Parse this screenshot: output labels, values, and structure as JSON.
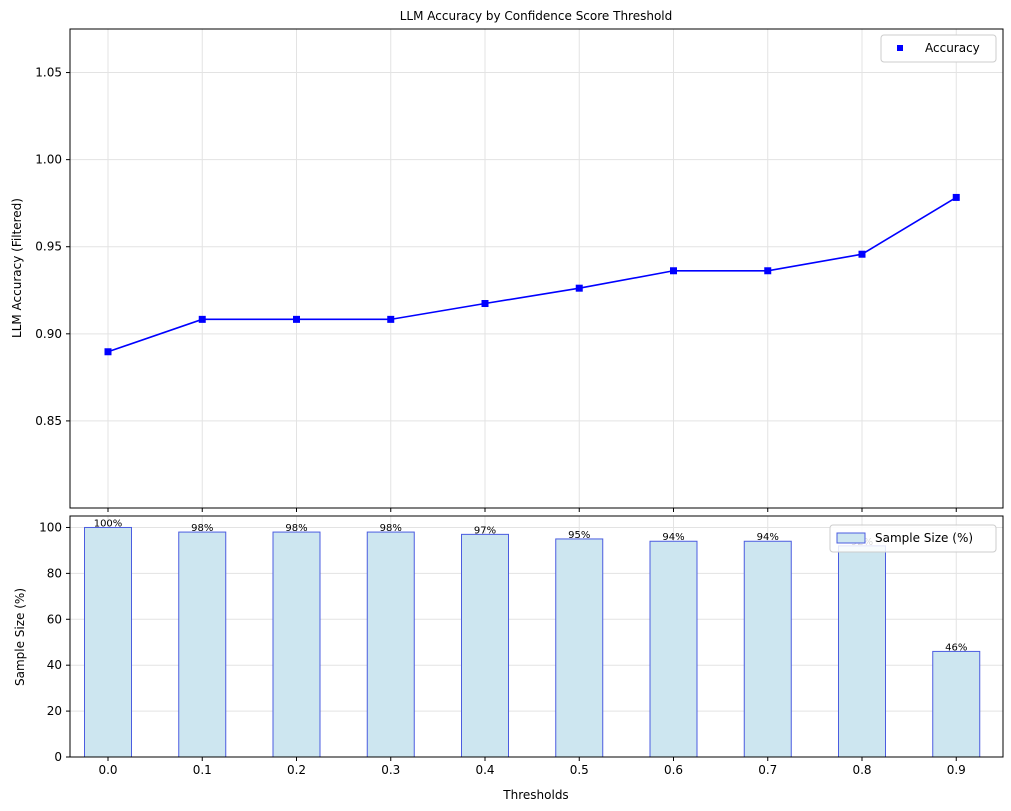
{
  "chart_data": [
    {
      "type": "line",
      "title": "LLM Accuracy by Confidence Score Threshold",
      "xlabel": "",
      "ylabel": "LLM Accuracy (Filtered)",
      "x": [
        0.0,
        0.1,
        0.2,
        0.3,
        0.4,
        0.5,
        0.6,
        0.7,
        0.8,
        0.9
      ],
      "series": [
        {
          "name": "Accuracy",
          "values": [
            0.8897,
            0.9083,
            0.9083,
            0.9083,
            0.9174,
            0.9262,
            0.9362,
            0.9362,
            0.9457,
            0.9783
          ],
          "color": "#0000ff",
          "marker": "square"
        }
      ],
      "ylim": [
        0.8,
        1.075
      ],
      "yticks": [
        "0.85",
        "0.90",
        "0.95",
        "1.00",
        "1.05"
      ],
      "grid": true,
      "legend": "top-right"
    },
    {
      "type": "bar",
      "xlabel": "Thresholds",
      "ylabel": "Sample Size (%)",
      "categories": [
        "0.0",
        "0.1",
        "0.2",
        "0.3",
        "0.4",
        "0.5",
        "0.6",
        "0.7",
        "0.8",
        "0.9"
      ],
      "series": [
        {
          "name": "Sample Size (%)",
          "values": [
            100,
            98,
            98,
            98,
            97,
            95,
            94,
            94,
            92,
            46
          ],
          "labels": [
            "100%",
            "98%",
            "98%",
            "98%",
            "97%",
            "95%",
            "94%",
            "94%",
            "92%",
            "46%"
          ],
          "fill": "#cde6f0",
          "edge": "#4b5ce0"
        }
      ],
      "ylim": [
        0,
        105
      ],
      "yticks": [
        "0",
        "20",
        "40",
        "60",
        "80",
        "100"
      ],
      "grid": true,
      "legend": "top-right"
    }
  ]
}
